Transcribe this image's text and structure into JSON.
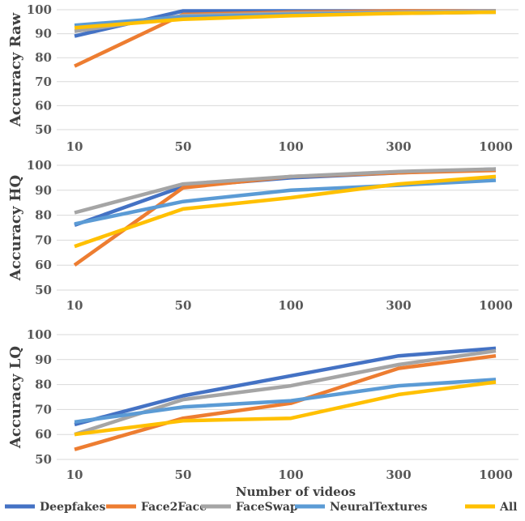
{
  "chart_data": [
    {
      "type": "line",
      "ylabel": "Accuracy Raw",
      "categories": [
        "10",
        "50",
        "100",
        "300",
        "1000"
      ],
      "ylim": [
        50,
        100
      ],
      "yticks": [
        50,
        60,
        70,
        80,
        90,
        100
      ],
      "grid": true,
      "series": [
        {
          "name": "Deepfakes",
          "values": [
            89,
            99.5,
            99.5,
            99.5,
            99.5
          ]
        },
        {
          "name": "Face2Face",
          "values": [
            76.5,
            98,
            99,
            99.5,
            99.5
          ]
        },
        {
          "name": "FaceSwap",
          "values": [
            91,
            97.5,
            98.5,
            99,
            99.5
          ]
        },
        {
          "name": "NeuralTextures",
          "values": [
            93.5,
            97,
            98,
            98.5,
            99
          ]
        },
        {
          "name": "All",
          "values": [
            92.5,
            96,
            97.5,
            98.5,
            99
          ]
        }
      ]
    },
    {
      "type": "line",
      "ylabel": "Accuracy HQ",
      "categories": [
        "10",
        "50",
        "100",
        "300",
        "1000"
      ],
      "ylim": [
        50,
        100
      ],
      "yticks": [
        50,
        60,
        70,
        80,
        90,
        100
      ],
      "grid": true,
      "series": [
        {
          "name": "Deepfakes",
          "values": [
            76,
            91.5,
            95,
            97,
            98.5
          ]
        },
        {
          "name": "Face2Face",
          "values": [
            60,
            91,
            95.5,
            97,
            98
          ]
        },
        {
          "name": "FaceSwap",
          "values": [
            81,
            92.5,
            95.5,
            97.5,
            98.5
          ]
        },
        {
          "name": "NeuralTextures",
          "values": [
            76.5,
            85.5,
            90,
            92,
            94
          ]
        },
        {
          "name": "All",
          "values": [
            67.5,
            82.5,
            87,
            92.5,
            95.5
          ]
        }
      ]
    },
    {
      "type": "line",
      "ylabel": "Accuracy LQ",
      "xlabel": "Number of videos",
      "categories": [
        "10",
        "50",
        "100",
        "300",
        "1000"
      ],
      "ylim": [
        50,
        100
      ],
      "yticks": [
        50,
        60,
        70,
        80,
        90,
        100
      ],
      "grid": true,
      "series": [
        {
          "name": "Deepfakes",
          "values": [
            64,
            75.5,
            83.5,
            91.5,
            94.5
          ]
        },
        {
          "name": "Face2Face",
          "values": [
            54,
            66.5,
            72.5,
            86.5,
            91.5
          ]
        },
        {
          "name": "FaceSwap",
          "values": [
            60,
            74,
            79.5,
            88,
            93.5
          ]
        },
        {
          "name": "NeuralTextures",
          "values": [
            65,
            71,
            73.5,
            79.5,
            82
          ]
        },
        {
          "name": "All",
          "values": [
            60,
            65.5,
            66.5,
            76,
            81
          ]
        }
      ]
    }
  ],
  "legend": {
    "placement": "bottom",
    "items": [
      {
        "label": "Deepfakes",
        "color": "#4472c4"
      },
      {
        "label": "Face2Face",
        "color": "#ed7d31"
      },
      {
        "label": "FaceSwap",
        "color": "#a5a5a5"
      },
      {
        "label": "NeuralTextures",
        "color": "#5b9bd5"
      },
      {
        "label": "All",
        "color": "#ffc000"
      }
    ]
  }
}
